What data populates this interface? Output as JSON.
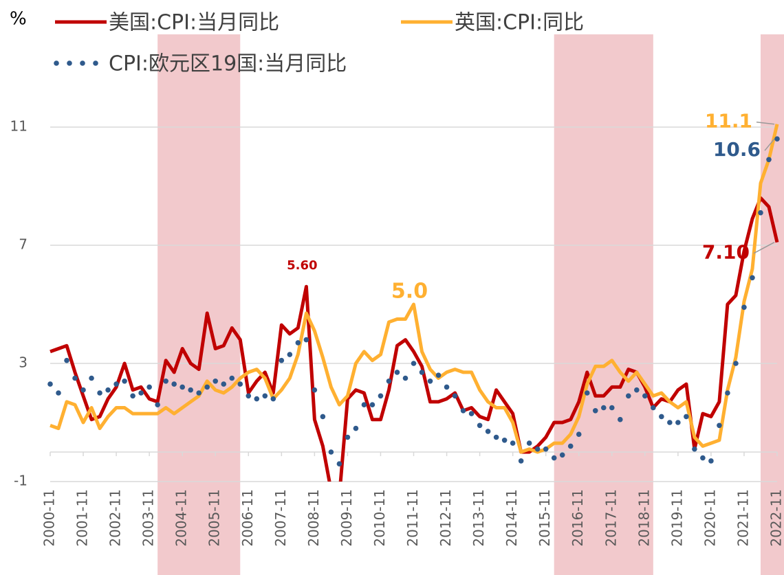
{
  "chart_data": {
    "type": "line",
    "y_label": "%",
    "categories": [
      "2000-11",
      null,
      null,
      null,
      "2001-11",
      null,
      null,
      null,
      "2002-11",
      null,
      null,
      null,
      "2003-11",
      null,
      null,
      null,
      "2004-11",
      null,
      null,
      null,
      "2005-11",
      null,
      null,
      null,
      "2006-11",
      null,
      null,
      null,
      "2007-11",
      null,
      null,
      null,
      "2008-11",
      null,
      null,
      null,
      "2009-11",
      null,
      null,
      null,
      "2010-11",
      null,
      null,
      null,
      "2011-11",
      null,
      null,
      null,
      "2012-11",
      null,
      null,
      null,
      "2013-11",
      null,
      null,
      null,
      "2014-11",
      null,
      null,
      null,
      "2015-11",
      null,
      null,
      null,
      "2016-11",
      null,
      null,
      null,
      "2017-11",
      null,
      null,
      null,
      "2018-11",
      null,
      null,
      null,
      "2019-11",
      null,
      null,
      null,
      "2020-11",
      null,
      null,
      null,
      "2021-11",
      null,
      null,
      null,
      "2022-11"
    ],
    "series": [
      {
        "name": "美国:CPI:当月同比",
        "color": "#c00000",
        "style": "line",
        "values": [
          3.4,
          3.5,
          3.6,
          2.7,
          1.9,
          1.1,
          1.2,
          1.8,
          2.2,
          3.0,
          2.1,
          2.2,
          1.8,
          1.7,
          3.1,
          2.7,
          3.5,
          3.0,
          2.8,
          4.7,
          3.5,
          3.6,
          4.2,
          3.8,
          2.0,
          2.4,
          2.7,
          2.0,
          4.3,
          4.0,
          4.2,
          5.6,
          1.1,
          0.2,
          -1.3,
          -1.5,
          1.8,
          2.1,
          2.0,
          1.1,
          1.1,
          2.1,
          3.6,
          3.8,
          3.4,
          2.9,
          1.7,
          1.7,
          1.8,
          2.0,
          1.4,
          1.5,
          1.2,
          1.1,
          2.1,
          1.7,
          1.3,
          0.0,
          0.0,
          0.2,
          0.5,
          1.0,
          1.0,
          1.1,
          1.7,
          2.7,
          1.9,
          1.9,
          2.2,
          2.2,
          2.8,
          2.7,
          2.2,
          1.5,
          1.8,
          1.7,
          2.1,
          2.3,
          0.1,
          1.3,
          1.2,
          1.7,
          5.0,
          5.3,
          6.8,
          7.9,
          8.6,
          8.3,
          7.1
        ],
        "value_labels": [
          null,
          null,
          null,
          null,
          null,
          null,
          null,
          null,
          null,
          null,
          null,
          null,
          null,
          null,
          null,
          null,
          null,
          null,
          null,
          null,
          null,
          null,
          null,
          null,
          null,
          null,
          null,
          null,
          null,
          null,
          null,
          "5.60",
          null,
          null,
          null,
          null,
          null,
          null,
          null,
          null,
          null,
          null,
          null,
          null,
          null,
          null,
          null,
          null,
          null,
          null,
          null,
          null,
          null,
          null,
          null,
          null,
          null,
          null,
          null,
          null,
          null,
          null,
          null,
          null,
          null,
          null,
          null,
          null,
          null,
          null,
          null,
          null,
          null,
          null,
          null,
          null,
          null,
          null,
          null,
          null,
          null,
          null,
          null,
          null,
          null,
          null,
          null,
          null,
          "7.10"
        ]
      },
      {
        "name": "英国:CPI:同比",
        "color": "#ffb031",
        "style": "line",
        "values": [
          0.9,
          0.8,
          1.7,
          1.6,
          1.0,
          1.5,
          0.8,
          1.2,
          1.5,
          1.5,
          1.3,
          1.3,
          1.3,
          1.3,
          1.5,
          1.3,
          1.5,
          1.7,
          1.9,
          2.4,
          2.1,
          2.0,
          2.2,
          2.5,
          2.7,
          2.8,
          2.5,
          1.8,
          2.1,
          2.5,
          3.3,
          4.7,
          4.1,
          3.2,
          2.2,
          1.6,
          1.9,
          3.0,
          3.4,
          3.1,
          3.3,
          4.4,
          4.5,
          4.5,
          5.0,
          3.4,
          2.8,
          2.5,
          2.7,
          2.8,
          2.7,
          2.7,
          2.1,
          1.7,
          1.5,
          1.5,
          1.0,
          0.0,
          0.1,
          0.0,
          0.1,
          0.3,
          0.3,
          0.6,
          1.2,
          2.3,
          2.9,
          2.9,
          3.1,
          2.7,
          2.4,
          2.7,
          2.3,
          1.9,
          2.0,
          1.7,
          1.5,
          1.7,
          0.5,
          0.2,
          0.3,
          0.4,
          2.1,
          3.2,
          5.1,
          6.2,
          9.1,
          9.9,
          11.1
        ],
        "value_labels": [
          null,
          null,
          null,
          null,
          null,
          null,
          null,
          null,
          null,
          null,
          null,
          null,
          null,
          null,
          null,
          null,
          null,
          null,
          null,
          null,
          null,
          null,
          null,
          null,
          null,
          null,
          null,
          null,
          null,
          null,
          null,
          null,
          null,
          null,
          null,
          null,
          null,
          null,
          null,
          null,
          null,
          null,
          null,
          null,
          "5.0",
          null,
          null,
          null,
          null,
          null,
          null,
          null,
          null,
          null,
          null,
          null,
          null,
          null,
          null,
          null,
          null,
          null,
          null,
          null,
          null,
          null,
          null,
          null,
          null,
          null,
          null,
          null,
          null,
          null,
          null,
          null,
          null,
          null,
          null,
          null,
          null,
          null,
          null,
          null,
          null,
          null,
          null,
          null,
          "11.1"
        ]
      },
      {
        "name": "CPI:欧元区19国:当月同比",
        "color": "#2f5a8c",
        "style": "dots",
        "values": [
          2.3,
          2.0,
          3.1,
          2.5,
          2.1,
          2.5,
          2.0,
          2.1,
          2.3,
          2.4,
          1.9,
          2.0,
          2.2,
          1.6,
          2.4,
          2.3,
          2.2,
          2.1,
          2.0,
          2.2,
          2.4,
          2.3,
          2.5,
          2.3,
          1.9,
          1.8,
          1.9,
          1.8,
          3.1,
          3.3,
          3.7,
          3.8,
          2.1,
          1.2,
          0.0,
          -0.4,
          0.5,
          0.8,
          1.6,
          1.6,
          1.9,
          2.4,
          2.7,
          2.5,
          3.0,
          2.7,
          2.4,
          2.6,
          2.2,
          1.9,
          1.4,
          1.3,
          0.9,
          0.7,
          0.5,
          0.4,
          0.3,
          -0.3,
          0.3,
          0.1,
          0.1,
          -0.2,
          -0.1,
          0.2,
          0.6,
          2.0,
          1.4,
          1.5,
          1.5,
          1.1,
          1.9,
          2.1,
          1.9,
          1.5,
          1.2,
          1.0,
          1.0,
          1.2,
          0.1,
          -0.2,
          -0.3,
          0.9,
          2.0,
          3.0,
          4.9,
          5.9,
          8.1,
          9.9,
          10.6
        ],
        "value_labels": [
          null,
          null,
          null,
          null,
          null,
          null,
          null,
          null,
          null,
          null,
          null,
          null,
          null,
          null,
          null,
          null,
          null,
          null,
          null,
          null,
          null,
          null,
          null,
          null,
          null,
          null,
          null,
          null,
          null,
          null,
          null,
          null,
          null,
          null,
          null,
          null,
          null,
          null,
          null,
          null,
          null,
          null,
          null,
          null,
          null,
          null,
          null,
          null,
          null,
          null,
          null,
          null,
          null,
          null,
          null,
          null,
          null,
          null,
          null,
          null,
          null,
          null,
          null,
          null,
          null,
          null,
          null,
          null,
          null,
          null,
          null,
          null,
          null,
          null,
          null,
          null,
          null,
          null,
          null,
          null,
          null,
          null,
          null,
          null,
          null,
          null,
          null,
          null,
          "10.6"
        ]
      }
    ],
    "shaded": [
      [
        13,
        23
      ],
      [
        61,
        73
      ],
      [
        86,
        88
      ]
    ],
    "shade_color": "#f2c9cc",
    "ylim": [
      -1,
      14
    ],
    "yticks": [
      -1,
      3,
      7,
      11
    ],
    "grid": true
  }
}
